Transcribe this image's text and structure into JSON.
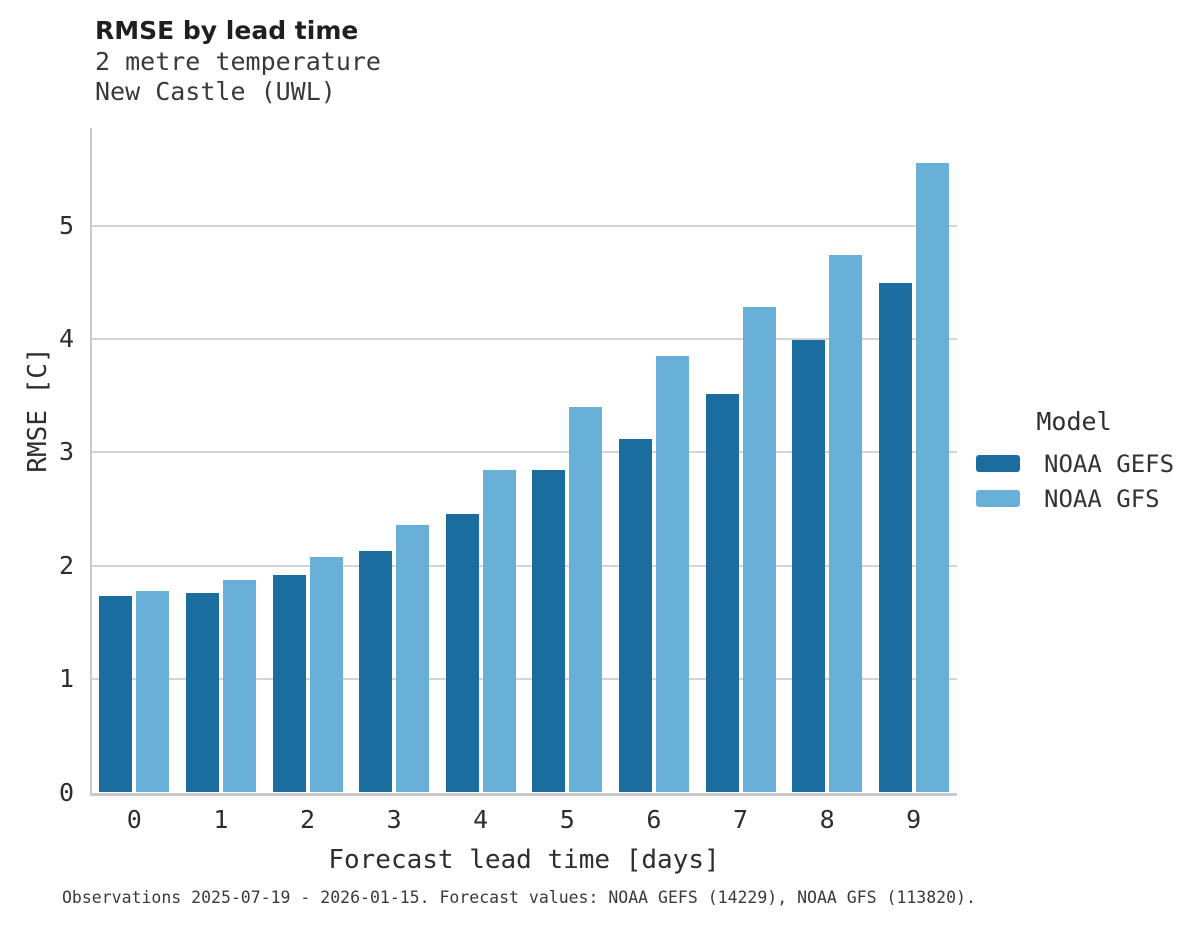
{
  "chart_data": {
    "type": "bar",
    "title": "RMSE by lead time",
    "subtitle": [
      "2 metre temperature",
      "New Castle (UWL)"
    ],
    "categories": [
      "0",
      "1",
      "2",
      "3",
      "4",
      "5",
      "6",
      "7",
      "8",
      "9"
    ],
    "series": [
      {
        "name": "NOAA GEFS",
        "color": "#1A6D9E",
        "values": [
          1.73,
          1.76,
          1.92,
          2.13,
          2.46,
          2.84,
          3.12,
          3.51,
          3.99,
          4.49
        ]
      },
      {
        "name": "NOAA GFS",
        "color": "#69B0D8",
        "values": [
          1.78,
          1.87,
          2.08,
          2.36,
          2.84,
          3.4,
          3.85,
          4.28,
          4.74,
          5.55
        ]
      }
    ],
    "xlabel": "Forecast lead time [days]",
    "ylabel": "RMSE [C]",
    "ylim": [
      0,
      5.86
    ],
    "yticks": [
      0,
      1,
      2,
      3,
      4,
      5
    ],
    "grid": "horizontal",
    "legend_title": "Model",
    "legend_position": "right",
    "caption": "Observations 2025-07-19 - 2026-01-15. Forecast values: NOAA GEFS (14229), NOAA GFS (113820)."
  },
  "colors": {
    "gridline": "#d4d4d4",
    "spine": "#c9c9c9",
    "background": "#ffffff"
  }
}
